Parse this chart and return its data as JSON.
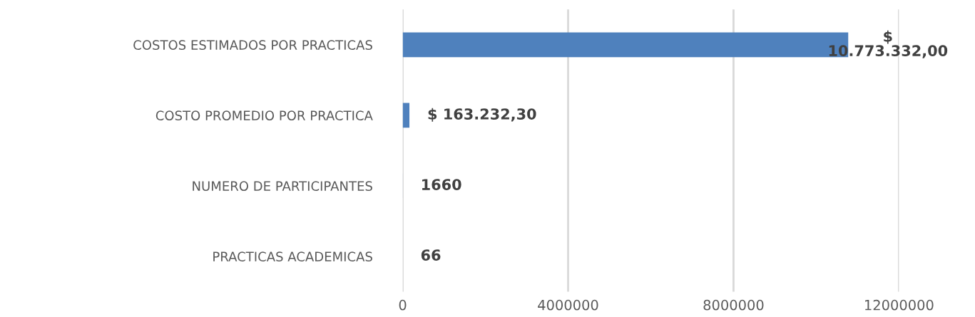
{
  "chart_data": {
    "type": "bar",
    "orientation": "horizontal",
    "categories": [
      "COSTOS ESTIMADOS POR PRACTICAS",
      "COSTO PROMEDIO POR PRACTICA",
      "NUMERO DE PARTICIPANTES",
      "PRACTICAS ACADEMICAS"
    ],
    "values": [
      10773332,
      163232.3,
      1660,
      66
    ],
    "value_labels": [
      "$\n10.773.332,00",
      "$ 163.232,30",
      "1660",
      "66"
    ],
    "color": "#4f81bd",
    "xlim": [
      0,
      12000000
    ],
    "xticks": [
      0,
      4000000,
      8000000,
      12000000
    ],
    "grid": "x",
    "legend": false
  }
}
